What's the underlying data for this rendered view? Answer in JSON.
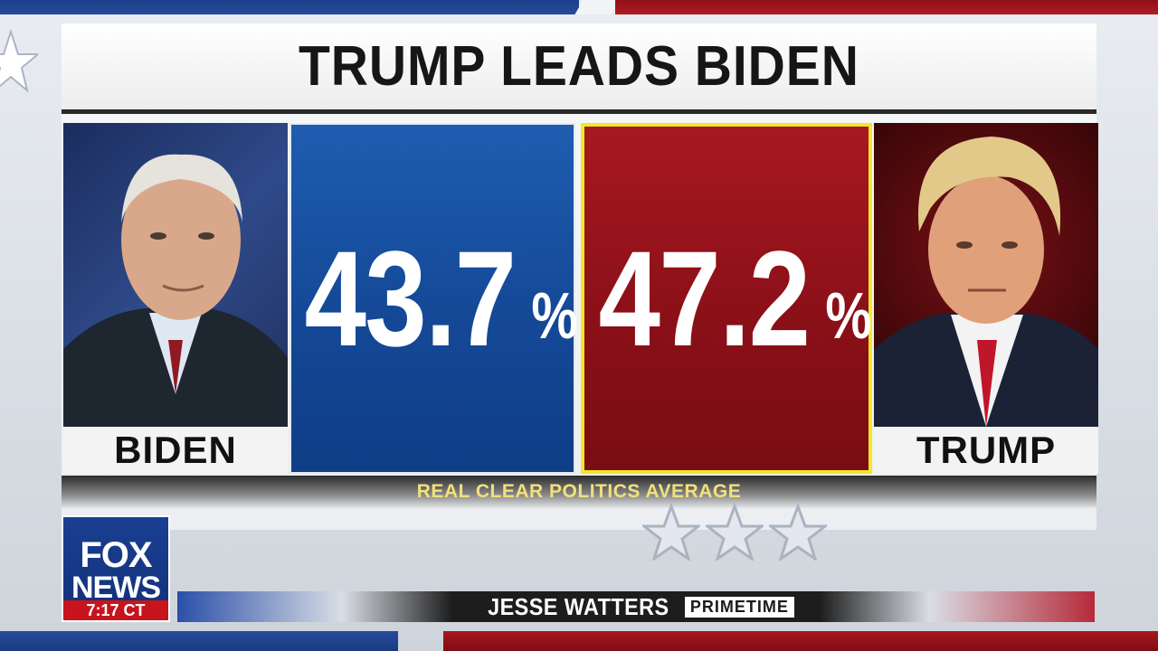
{
  "title": "TRUMP LEADS BIDEN",
  "candidates": {
    "biden": {
      "name": "BIDEN",
      "value": "43.7",
      "unit": "%",
      "color": "#154a99"
    },
    "trump": {
      "name": "TRUMP",
      "value": "47.2",
      "unit": "%",
      "color": "#8b1018",
      "highlight_color": "#f5e62a"
    }
  },
  "source": "REAL CLEAR POLITICS AVERAGE",
  "logo": {
    "line1": "FOX",
    "line2": "NEWS",
    "time": "7:17 CT"
  },
  "show": {
    "name": "JESSE WATTERS",
    "sub": "PRIMETIME"
  }
}
